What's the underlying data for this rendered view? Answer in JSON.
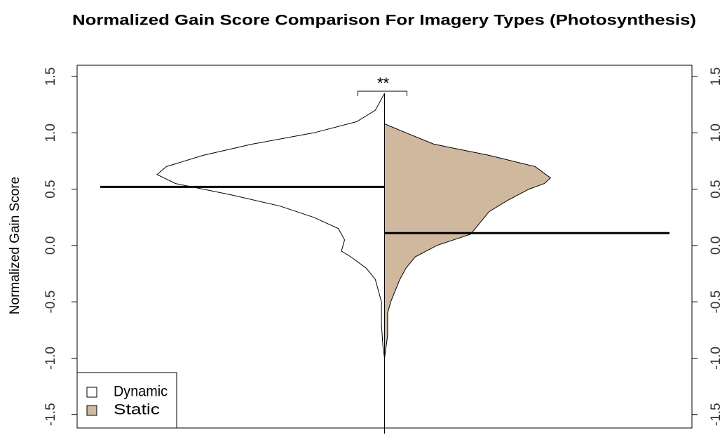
{
  "chart_data": {
    "type": "violin",
    "title": "Normalized Gain Score Comparison For Imagery Types (Photosynthesis)",
    "ylabel": "Normalized Gain Score",
    "annotation": "**",
    "ylim": [
      -1.62,
      1.6
    ],
    "xlim": [
      -1,
      1
    ],
    "yticks": [
      -1.5,
      {
        "value": -1,
        "label": "-1.0"
      },
      -0.5,
      {
        "value": 0,
        "label": "0.0"
      },
      0.5,
      {
        "value": 1,
        "label": "1.0"
      },
      1.5
    ],
    "legend": "bottom-left",
    "series": [
      {
        "name": "Dynamic",
        "color": "#ffffff",
        "mean": 0.52,
        "y": [
          1.35,
          1.2,
          1.1,
          1.0,
          0.9,
          0.8,
          0.7,
          0.63,
          0.55,
          0.45,
          0.35,
          0.25,
          0.15,
          0.05,
          -0.05,
          -0.1,
          -0.2,
          -0.3,
          -0.5,
          -0.7,
          -0.9,
          -1.0
        ],
        "density": [
          0,
          0.03,
          0.09,
          0.23,
          0.43,
          0.59,
          0.71,
          0.74,
          0.68,
          0.5,
          0.34,
          0.23,
          0.15,
          0.13,
          0.14,
          0.11,
          0.06,
          0.03,
          0.01,
          0.01,
          0.005,
          0
        ]
      },
      {
        "name": "Static",
        "color": "#cfb89e",
        "mean": 0.11,
        "y": [
          1.08,
          1.0,
          0.9,
          0.8,
          0.7,
          0.6,
          0.55,
          0.5,
          0.4,
          0.3,
          0.2,
          0.1,
          0.0,
          -0.1,
          -0.2,
          -0.3,
          -0.5,
          -0.6,
          -0.8,
          -0.9,
          -1.0
        ],
        "density": [
          0,
          0.07,
          0.16,
          0.34,
          0.49,
          0.54,
          0.52,
          0.47,
          0.4,
          0.34,
          0.31,
          0.28,
          0.17,
          0.1,
          0.07,
          0.05,
          0.02,
          0.01,
          0.01,
          0.005,
          0
        ]
      }
    ]
  }
}
